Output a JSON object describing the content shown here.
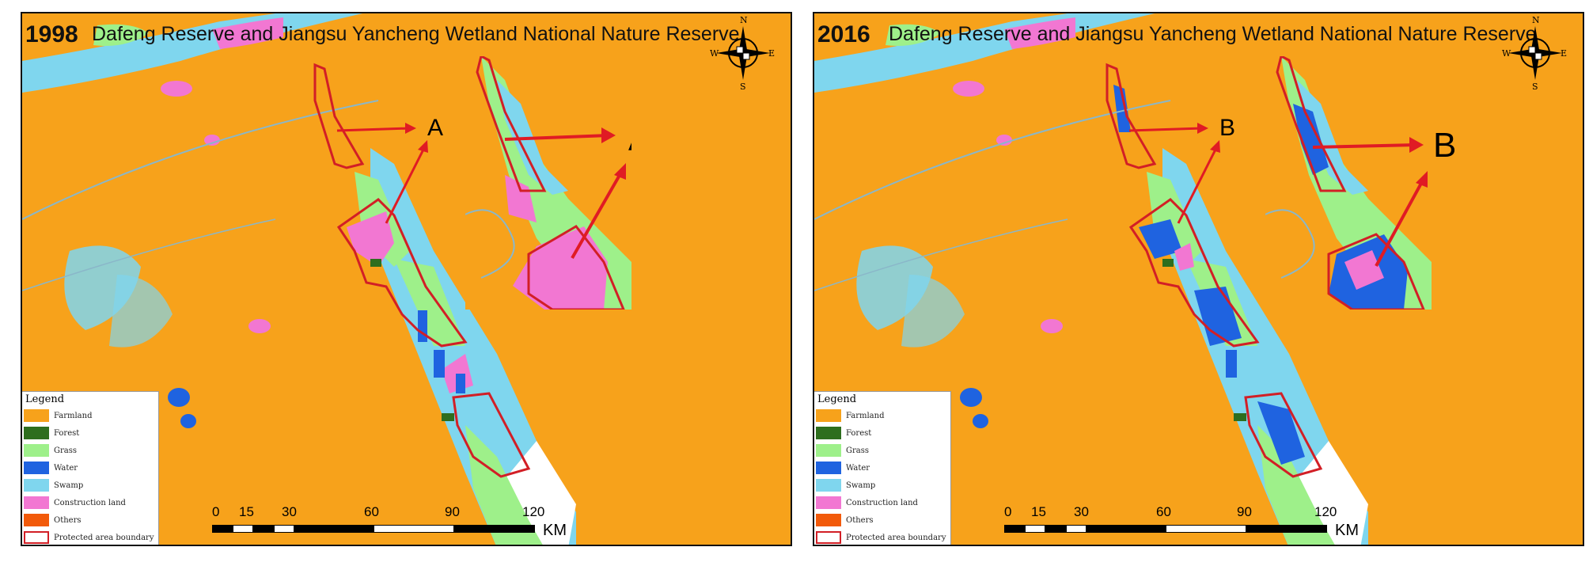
{
  "panels": [
    {
      "year": "1998",
      "title": "Dafeng Reserve and Jiangsu Yancheng Wetland National Nature Reserve",
      "marker": "A"
    },
    {
      "year": "2016",
      "title": "Dafeng Reserve and Jiangsu Yancheng Wetland National Nature Reserve",
      "marker": "B"
    }
  ],
  "compass": {
    "n": "N",
    "s": "S",
    "e": "E",
    "w": "W"
  },
  "legend": {
    "title": "Legend",
    "items": [
      {
        "label": "Farmland",
        "color": "#f7a21b"
      },
      {
        "label": "Forest",
        "color": "#2e6e1e"
      },
      {
        "label": "Grass",
        "color": "#9ef08a"
      },
      {
        "label": "Water",
        "color": "#1f63e0"
      },
      {
        "label": "Swamp",
        "color": "#7fd6ee"
      },
      {
        "label": "Construction land",
        "color": "#f277d2"
      },
      {
        "label": "Others",
        "color": "#f25a0a"
      },
      {
        "label": "Protected area boundary",
        "color": "#ffffff",
        "border": "#d21f26"
      }
    ]
  },
  "scale": {
    "ticks": [
      "0",
      "15",
      "30",
      "60",
      "90",
      "120"
    ],
    "unit": "KM"
  }
}
